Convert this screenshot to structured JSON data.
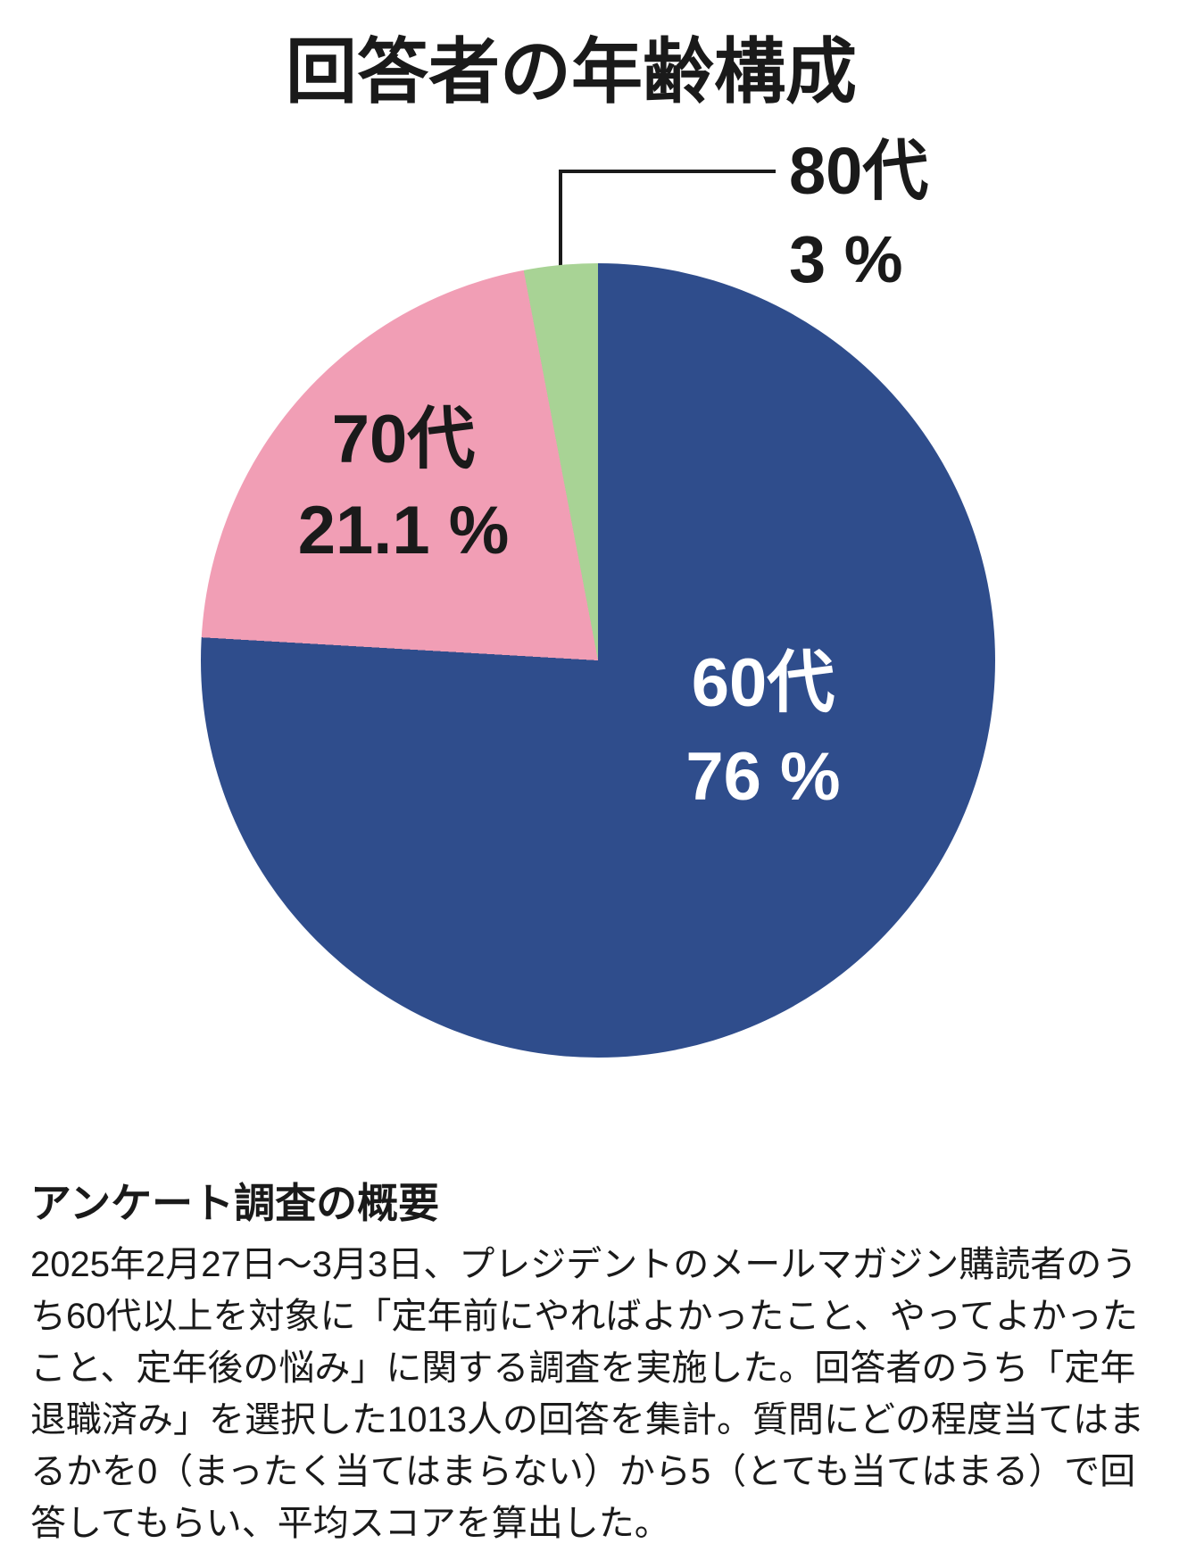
{
  "title": "回答者の年齢構成",
  "chart_data": {
    "type": "pie",
    "title": "回答者の年齢構成",
    "start_angle_deg": 0,
    "direction": "clockwise",
    "legend_position": "none",
    "slices": [
      {
        "label": "60代",
        "value": 76,
        "display": "76 %",
        "color": "#2F4D8C",
        "label_color": "#ffffff",
        "label_position": "inside"
      },
      {
        "label": "70代",
        "value": 21.1,
        "display": "21.1 %",
        "color": "#F19EB5",
        "label_color": "#1a1a1a",
        "label_position": "inside"
      },
      {
        "label": "80代",
        "value": 3,
        "display": "3 %",
        "color": "#A8D395",
        "label_color": "#1a1a1a",
        "label_position": "outside-callout"
      }
    ]
  },
  "footer": {
    "heading": "アンケート調査の概要",
    "lines": [
      "2025年2月27日〜3月3日、プレジデントのメールマガジン購読者のう",
      "ち60代以上を対象に「定年前にやればよかったこと、やってよかった",
      "こと、定年後の悩み」に関する調査を実施した。回答者のうち「定年",
      "退職済み」を選択した1013人の回答を集計。質問にどの程度当てはま",
      "るかを0（まったく当てはまらない）から5（とても当てはまる）で回",
      "答してもらい、平均スコアを算出した。"
    ]
  }
}
